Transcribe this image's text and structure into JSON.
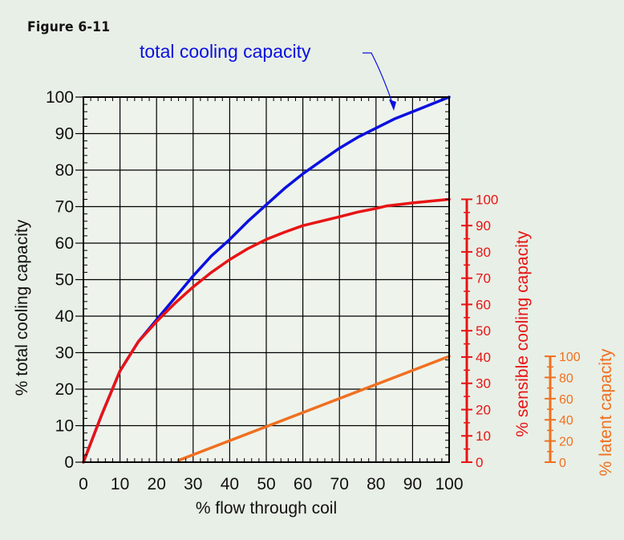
{
  "figure_label": "Figure 6-11",
  "colors": {
    "background": "#e8efe6",
    "grid": "#000000",
    "total": "#0a10e0",
    "sensible": "#e81414",
    "latent": "#f07020"
  },
  "chart_data": {
    "type": "line",
    "annotation": "total cooling capacity",
    "xlabel": "% flow through coil",
    "ylabel": "% total cooling capacity",
    "xlim": [
      0,
      100
    ],
    "ylim": [
      0,
      100
    ],
    "x_ticks": [
      0,
      10,
      20,
      30,
      40,
      50,
      60,
      70,
      80,
      90,
      100
    ],
    "y_ticks": [
      0,
      10,
      20,
      30,
      40,
      50,
      60,
      70,
      80,
      90,
      100
    ],
    "grid": true,
    "series": [
      {
        "key": "total",
        "points": [
          [
            0,
            0
          ],
          [
            5,
            13
          ],
          [
            10,
            25
          ],
          [
            15,
            33
          ],
          [
            20,
            39
          ],
          [
            25,
            45
          ],
          [
            30,
            51
          ],
          [
            35,
            56.5
          ],
          [
            40,
            61
          ],
          [
            45,
            66
          ],
          [
            50,
            70.5
          ],
          [
            55,
            75
          ],
          [
            60,
            79
          ],
          [
            65,
            82.5
          ],
          [
            70,
            86
          ],
          [
            75,
            89
          ],
          [
            80,
            91.5
          ],
          [
            85,
            94
          ],
          [
            90,
            96
          ],
          [
            95,
            98
          ],
          [
            100,
            100
          ]
        ]
      },
      {
        "key": "sensible",
        "points": [
          [
            0,
            0
          ],
          [
            5,
            13
          ],
          [
            10,
            25
          ],
          [
            15,
            33
          ],
          [
            20,
            38.5
          ],
          [
            25,
            43.5
          ],
          [
            30,
            48
          ],
          [
            35,
            52
          ],
          [
            40,
            55.5
          ],
          [
            45,
            58.5
          ],
          [
            50,
            61
          ],
          [
            55,
            63
          ],
          [
            60,
            64.8
          ],
          [
            65,
            66
          ],
          [
            70,
            67.2
          ],
          [
            75,
            68.5
          ],
          [
            80,
            69.5
          ],
          [
            83,
            70.2
          ],
          [
            90,
            71
          ],
          [
            100,
            72
          ]
        ]
      },
      {
        "key": "latent",
        "points": [
          [
            26,
            0.5
          ],
          [
            100,
            29
          ]
        ]
      }
    ],
    "secondary_axes": [
      {
        "key": "sensible",
        "label": "% sensible cooling capacity",
        "ticks": [
          0,
          10,
          20,
          30,
          40,
          50,
          60,
          70,
          80,
          90,
          100
        ],
        "primary_range": [
          0,
          72
        ]
      },
      {
        "key": "latent",
        "label": "% latent capacity",
        "ticks": [
          0,
          20,
          40,
          60,
          80,
          100
        ],
        "primary_range": [
          0,
          29
        ]
      }
    ]
  }
}
